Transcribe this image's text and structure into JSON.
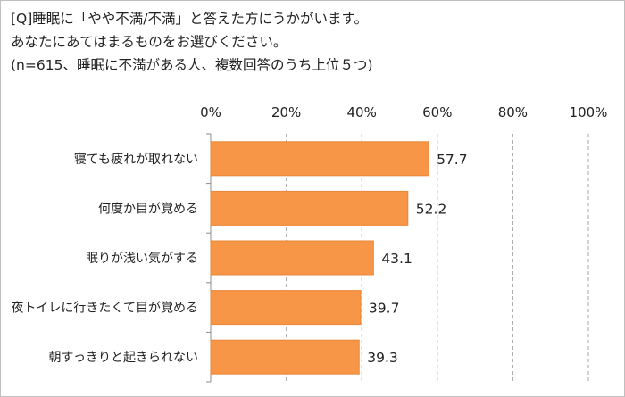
{
  "question": {
    "line1": "[Q]睡眠に「やや不満/不満」と答えた方にうかがいます。",
    "line2": "あなたにあてはまるものをお選びください。",
    "line3": "(n=615、睡眠に不満がある人、複数回答のうち上位５つ)"
  },
  "chart_data": {
    "type": "bar",
    "orientation": "horizontal",
    "categories": [
      "寝ても疲れが取れない",
      "何度か目が覚める",
      "眠りが浅い気がする",
      "夜トイレに行きたくて目が覚める",
      "朝すっきりと起きられない"
    ],
    "values": [
      57.7,
      52.2,
      43.1,
      39.7,
      39.3
    ],
    "data_labels": [
      "57.7",
      "52.2",
      "43.1",
      "39.7",
      "39.3"
    ],
    "xlim": [
      0,
      100
    ],
    "tick_labels": [
      "0%",
      "20%",
      "40%",
      "60%",
      "80%",
      "100%"
    ],
    "tick_values": [
      0,
      20,
      40,
      60,
      80,
      100
    ],
    "axis_position": "top",
    "grid": "vertical dashed",
    "bar_color": "#F79646",
    "bar_border_color": "#E9863A",
    "grid_color": "#A6A6A6"
  }
}
